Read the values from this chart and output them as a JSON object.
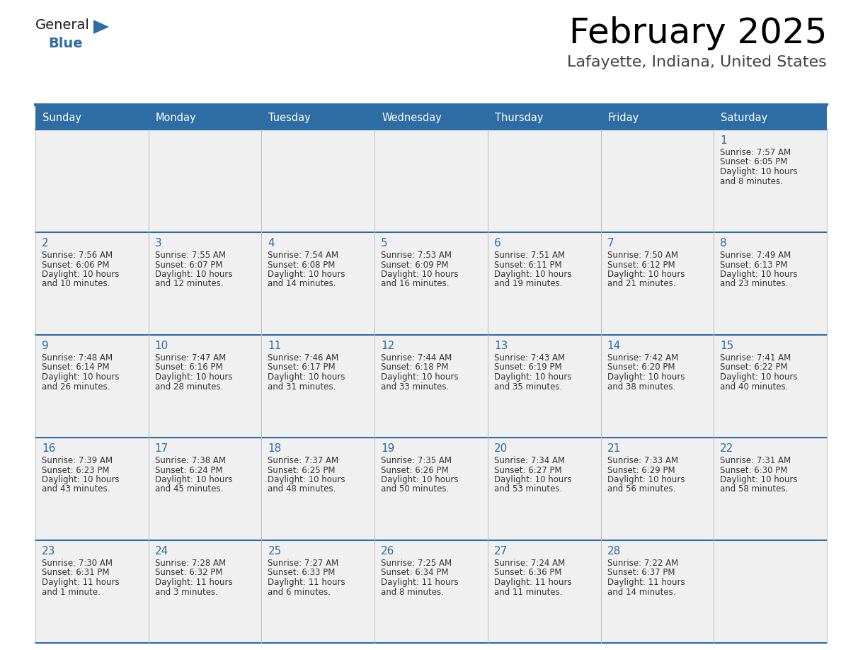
{
  "title": "February 2025",
  "subtitle": "Lafayette, Indiana, United States",
  "header_bg": "#2E6DA4",
  "header_text_color": "#FFFFFF",
  "cell_bg": "#F0F0F0",
  "day_number_color": "#2E6DA4",
  "info_text_color": "#333333",
  "border_color": "#AAAAAA",
  "days_of_week": [
    "Sunday",
    "Monday",
    "Tuesday",
    "Wednesday",
    "Thursday",
    "Friday",
    "Saturday"
  ],
  "calendar_data": [
    [
      null,
      null,
      null,
      null,
      null,
      null,
      {
        "day": "1",
        "sunrise": "7:57 AM",
        "sunset": "6:05 PM",
        "daylight_line1": "Daylight: 10 hours",
        "daylight_line2": "and 8 minutes."
      }
    ],
    [
      {
        "day": "2",
        "sunrise": "7:56 AM",
        "sunset": "6:06 PM",
        "daylight_line1": "Daylight: 10 hours",
        "daylight_line2": "and 10 minutes."
      },
      {
        "day": "3",
        "sunrise": "7:55 AM",
        "sunset": "6:07 PM",
        "daylight_line1": "Daylight: 10 hours",
        "daylight_line2": "and 12 minutes."
      },
      {
        "day": "4",
        "sunrise": "7:54 AM",
        "sunset": "6:08 PM",
        "daylight_line1": "Daylight: 10 hours",
        "daylight_line2": "and 14 minutes."
      },
      {
        "day": "5",
        "sunrise": "7:53 AM",
        "sunset": "6:09 PM",
        "daylight_line1": "Daylight: 10 hours",
        "daylight_line2": "and 16 minutes."
      },
      {
        "day": "6",
        "sunrise": "7:51 AM",
        "sunset": "6:11 PM",
        "daylight_line1": "Daylight: 10 hours",
        "daylight_line2": "and 19 minutes."
      },
      {
        "day": "7",
        "sunrise": "7:50 AM",
        "sunset": "6:12 PM",
        "daylight_line1": "Daylight: 10 hours",
        "daylight_line2": "and 21 minutes."
      },
      {
        "day": "8",
        "sunrise": "7:49 AM",
        "sunset": "6:13 PM",
        "daylight_line1": "Daylight: 10 hours",
        "daylight_line2": "and 23 minutes."
      }
    ],
    [
      {
        "day": "9",
        "sunrise": "7:48 AM",
        "sunset": "6:14 PM",
        "daylight_line1": "Daylight: 10 hours",
        "daylight_line2": "and 26 minutes."
      },
      {
        "day": "10",
        "sunrise": "7:47 AM",
        "sunset": "6:16 PM",
        "daylight_line1": "Daylight: 10 hours",
        "daylight_line2": "and 28 minutes."
      },
      {
        "day": "11",
        "sunrise": "7:46 AM",
        "sunset": "6:17 PM",
        "daylight_line1": "Daylight: 10 hours",
        "daylight_line2": "and 31 minutes."
      },
      {
        "day": "12",
        "sunrise": "7:44 AM",
        "sunset": "6:18 PM",
        "daylight_line1": "Daylight: 10 hours",
        "daylight_line2": "and 33 minutes."
      },
      {
        "day": "13",
        "sunrise": "7:43 AM",
        "sunset": "6:19 PM",
        "daylight_line1": "Daylight: 10 hours",
        "daylight_line2": "and 35 minutes."
      },
      {
        "day": "14",
        "sunrise": "7:42 AM",
        "sunset": "6:20 PM",
        "daylight_line1": "Daylight: 10 hours",
        "daylight_line2": "and 38 minutes."
      },
      {
        "day": "15",
        "sunrise": "7:41 AM",
        "sunset": "6:22 PM",
        "daylight_line1": "Daylight: 10 hours",
        "daylight_line2": "and 40 minutes."
      }
    ],
    [
      {
        "day": "16",
        "sunrise": "7:39 AM",
        "sunset": "6:23 PM",
        "daylight_line1": "Daylight: 10 hours",
        "daylight_line2": "and 43 minutes."
      },
      {
        "day": "17",
        "sunrise": "7:38 AM",
        "sunset": "6:24 PM",
        "daylight_line1": "Daylight: 10 hours",
        "daylight_line2": "and 45 minutes."
      },
      {
        "day": "18",
        "sunrise": "7:37 AM",
        "sunset": "6:25 PM",
        "daylight_line1": "Daylight: 10 hours",
        "daylight_line2": "and 48 minutes."
      },
      {
        "day": "19",
        "sunrise": "7:35 AM",
        "sunset": "6:26 PM",
        "daylight_line1": "Daylight: 10 hours",
        "daylight_line2": "and 50 minutes."
      },
      {
        "day": "20",
        "sunrise": "7:34 AM",
        "sunset": "6:27 PM",
        "daylight_line1": "Daylight: 10 hours",
        "daylight_line2": "and 53 minutes."
      },
      {
        "day": "21",
        "sunrise": "7:33 AM",
        "sunset": "6:29 PM",
        "daylight_line1": "Daylight: 10 hours",
        "daylight_line2": "and 56 minutes."
      },
      {
        "day": "22",
        "sunrise": "7:31 AM",
        "sunset": "6:30 PM",
        "daylight_line1": "Daylight: 10 hours",
        "daylight_line2": "and 58 minutes."
      }
    ],
    [
      {
        "day": "23",
        "sunrise": "7:30 AM",
        "sunset": "6:31 PM",
        "daylight_line1": "Daylight: 11 hours",
        "daylight_line2": "and 1 minute."
      },
      {
        "day": "24",
        "sunrise": "7:28 AM",
        "sunset": "6:32 PM",
        "daylight_line1": "Daylight: 11 hours",
        "daylight_line2": "and 3 minutes."
      },
      {
        "day": "25",
        "sunrise": "7:27 AM",
        "sunset": "6:33 PM",
        "daylight_line1": "Daylight: 11 hours",
        "daylight_line2": "and 6 minutes."
      },
      {
        "day": "26",
        "sunrise": "7:25 AM",
        "sunset": "6:34 PM",
        "daylight_line1": "Daylight: 11 hours",
        "daylight_line2": "and 8 minutes."
      },
      {
        "day": "27",
        "sunrise": "7:24 AM",
        "sunset": "6:36 PM",
        "daylight_line1": "Daylight: 11 hours",
        "daylight_line2": "and 11 minutes."
      },
      {
        "day": "28",
        "sunrise": "7:22 AM",
        "sunset": "6:37 PM",
        "daylight_line1": "Daylight: 11 hours",
        "daylight_line2": "and 14 minutes."
      },
      null
    ]
  ]
}
